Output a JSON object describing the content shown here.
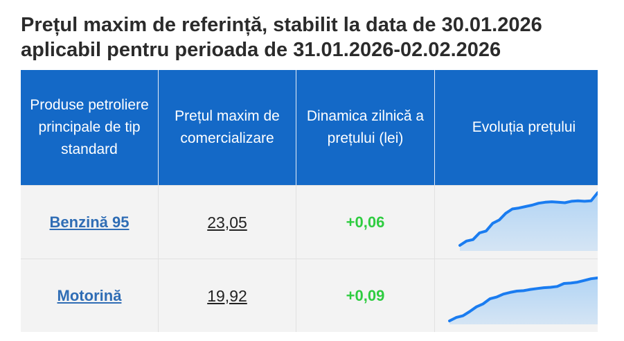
{
  "title": {
    "line1": "Prețul maxim de referință, stabilit la data de 30.01.2026",
    "line2": "aplicabil pentru perioada de 31.01.2026-02.02.2026"
  },
  "table": {
    "headers": [
      "Produse petroliere principale de tip standard",
      "Prețul maxim de comercializare",
      "Dinamica zilnică a prețului (lei)",
      "Evoluția prețului"
    ],
    "rows": [
      {
        "product": "Benzină 95",
        "price": "23,05",
        "delta": "+0,06",
        "trend": [
          0,
          0.9,
          1.2,
          2.6,
          3.0,
          4.6,
          5.3,
          6.7,
          7.6,
          7.8,
          8.1,
          8.4,
          8.8,
          9.0,
          9.1,
          9.0,
          8.9,
          9.2,
          9.3,
          9.2,
          9.3,
          11.0
        ]
      },
      {
        "product": "Motorină",
        "price": "19,92",
        "delta": "+0,09",
        "trend": [
          0,
          0.8,
          1.2,
          2.2,
          3.3,
          4.0,
          5.2,
          5.6,
          6.3,
          6.7,
          7.0,
          7.1,
          7.4,
          7.6,
          7.8,
          7.9,
          8.1,
          8.8,
          8.9,
          9.1,
          9.5,
          9.9,
          10.1
        ]
      }
    ]
  },
  "colors": {
    "header_bg": "#1469c7",
    "link": "#2f6db5",
    "positive": "#2ecc40",
    "spark_line": "#1a7cf0",
    "spark_fill": "#9ccaf5"
  }
}
